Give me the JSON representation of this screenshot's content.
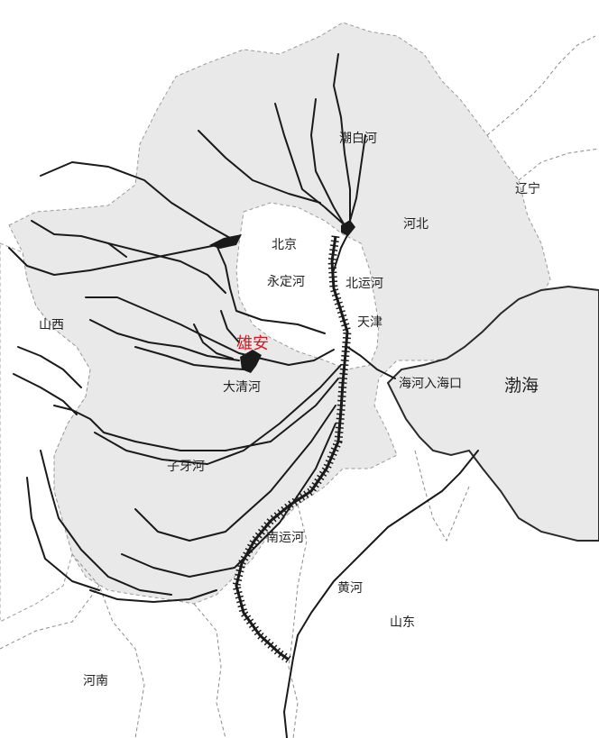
{
  "map": {
    "labels": {
      "liaoning": "辽宁",
      "chaobai": "潮白河",
      "hebei": "河北",
      "beijing": "北京",
      "yongding": "永定河",
      "beiyun": "北运河",
      "tianjin": "天津",
      "shanxi": "山西",
      "xiongan": "雄安",
      "daqing": "大清河",
      "haihe_mouth": "海河入海口",
      "bohai": "渤海",
      "ziya": "子牙河",
      "nanyun": "南运河",
      "yellow": "黄河",
      "shandong": "山东",
      "henan": "河南"
    },
    "colors": {
      "land": "#ffffff",
      "basin": "#e9e9e9",
      "sea": "#e9e9e9",
      "river": "#1a1a1a",
      "border": "#9a9a9a",
      "highlight": "#e0141e"
    }
  }
}
